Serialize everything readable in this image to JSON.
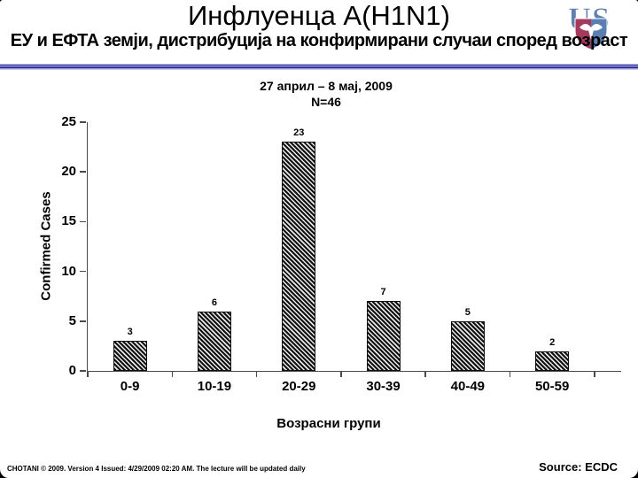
{
  "slide": {
    "title": "Инфлуенца А(H1N1)",
    "subtitle": "ЕУ и ЕФТА земји, дистрибуција на конфирмирани случаи според возраст",
    "footer_note": "CHOTANI © 2009. Version 4 Issued: 4/29/2009 02:20 AM. The lecture will be updated daily",
    "source": "Source: ECDC"
  },
  "logo": {
    "letter_u": "U",
    "letter_s": "S",
    "letter_color": "#6080b0",
    "shield_left_color": "#a53a5e",
    "shield_right_color": "#5b7fb0",
    "bird_color": "#ffffff"
  },
  "divider_colors": [
    "#c0c0e0",
    "#3838a8",
    "#9090d0",
    "#282896",
    "#c8c8e6"
  ],
  "chart_data": {
    "type": "bar",
    "title": "27 април – 8 мај, 2009",
    "n_label": "N=46",
    "categories": [
      "0-9",
      "10-19",
      "20-29",
      "30-39",
      "40-49",
      "50-59"
    ],
    "values": [
      3,
      6,
      23,
      7,
      5,
      2
    ],
    "xlabel": "Возрасни групи",
    "ylabel": "Confirmed Cases",
    "ylim": [
      0,
      25
    ],
    "yticks": [
      0,
      5,
      10,
      15,
      20,
      25
    ],
    "grid": false,
    "legend": false,
    "bar_style": "diagonal-hatch",
    "bar_color": "#121212",
    "axis_color": "#4a4a4a"
  }
}
